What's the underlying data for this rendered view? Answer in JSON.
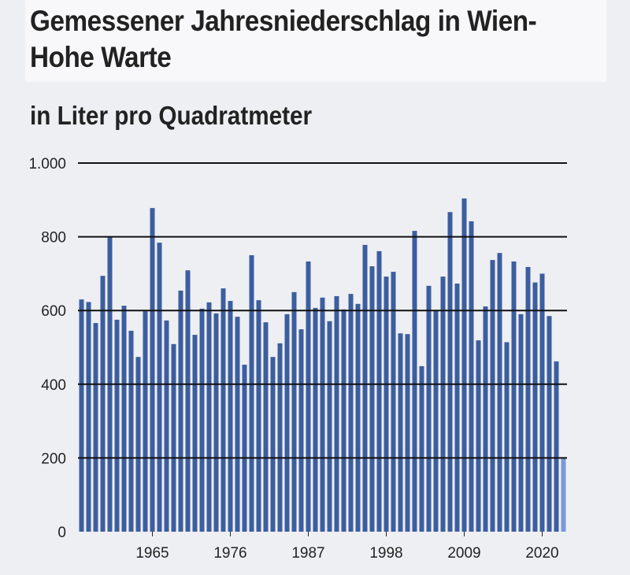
{
  "chart_data": {
    "type": "bar",
    "title": "Gemessener Jahresniederschlag in Wien-Hohe Warte",
    "subtitle": "in Liter pro Quadratmeter",
    "xlabel": "",
    "ylabel": "",
    "ylim": [
      0,
      1000
    ],
    "yticks": [
      0,
      200,
      400,
      600,
      800,
      1000
    ],
    "ytick_labels": [
      "0",
      "200",
      "400",
      "600",
      "800",
      "1.000"
    ],
    "xtick_labels": [
      "1965",
      "1976",
      "1987",
      "1998",
      "2009",
      "2020"
    ],
    "grid": true,
    "years_start": 1955,
    "values": [
      630,
      623,
      566,
      694,
      801,
      575,
      613,
      545,
      474,
      598,
      878,
      784,
      573,
      509,
      654,
      709,
      534,
      605,
      622,
      592,
      660,
      626,
      583,
      453,
      750,
      628,
      568,
      474,
      511,
      590,
      650,
      549,
      733,
      607,
      635,
      571,
      639,
      603,
      645,
      618,
      778,
      720,
      761,
      692,
      705,
      538,
      536,
      816,
      449,
      667,
      600,
      692,
      867,
      673,
      904,
      842,
      519,
      611,
      737,
      756,
      514,
      733,
      590,
      718,
      676,
      700,
      585,
      462,
      200
    ],
    "highlight_last": true,
    "colors": {
      "bar": "#3c5e9f",
      "last_bar": "#7b98d6",
      "grid": "#111111"
    }
  }
}
